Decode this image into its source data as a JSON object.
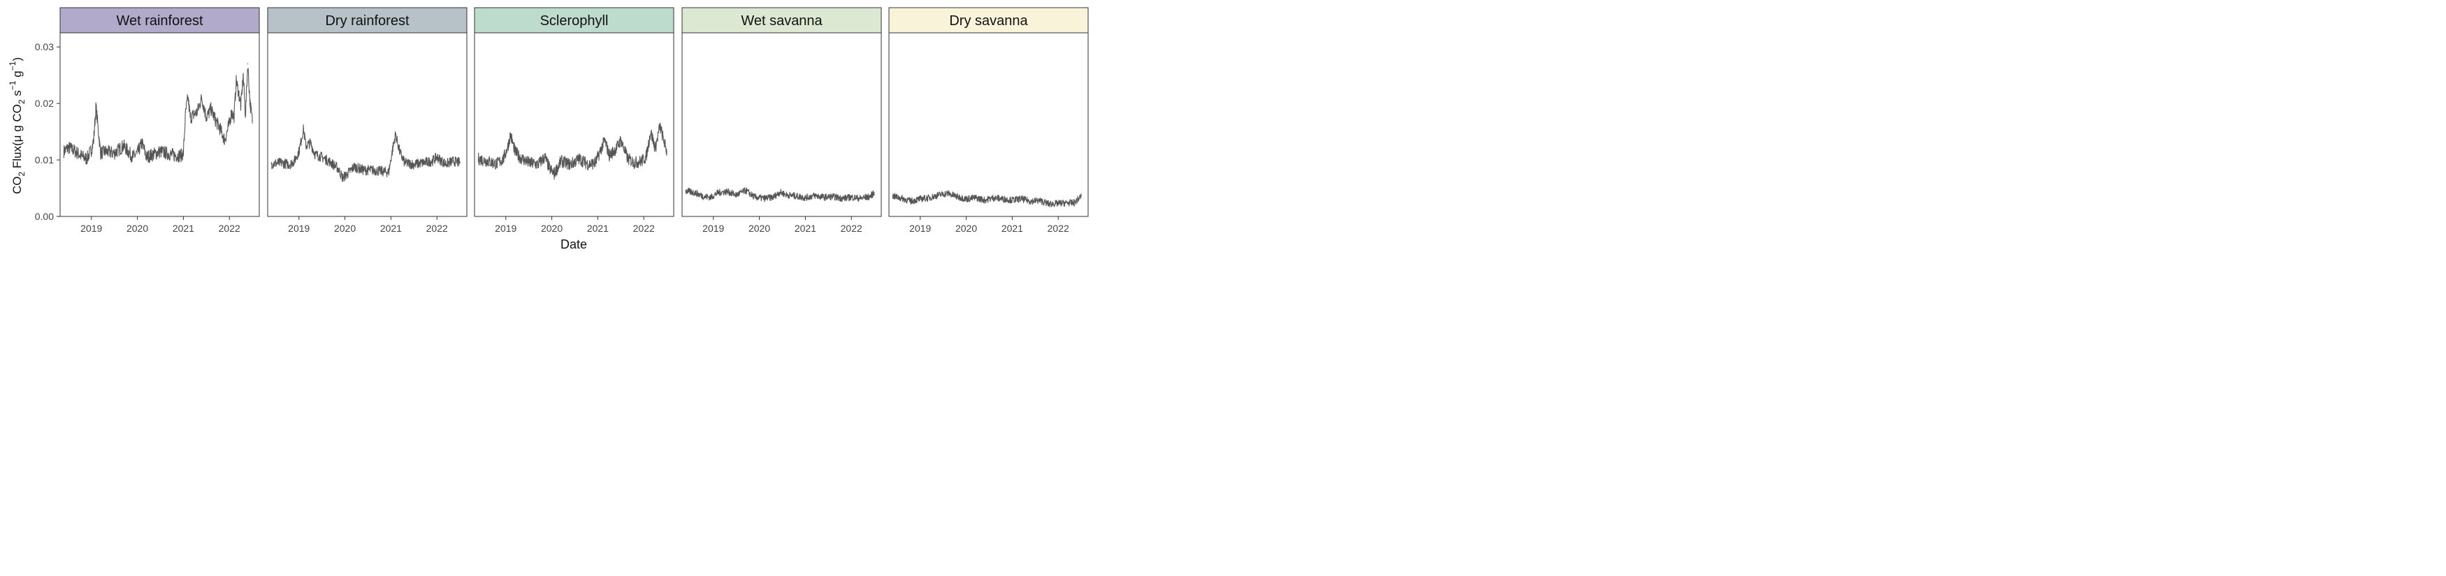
{
  "chart_data": {
    "type": "line",
    "layout": "facet-row",
    "y_label_parts": [
      "CO",
      "2",
      " Flux(",
      "μ",
      " g CO",
      "2",
      " s",
      "−1",
      " g",
      "−1",
      ")"
    ],
    "xlabel": "Date",
    "ylim": [
      0,
      0.0325
    ],
    "xlim": [
      2018.32,
      2022.65
    ],
    "y_ticks": [
      0.0,
      0.01,
      0.02,
      0.03
    ],
    "y_tick_labels": [
      "0.00",
      "0.01",
      "0.02",
      "0.03"
    ],
    "x_ticks": [
      2019,
      2020,
      2021,
      2022
    ],
    "x_tick_labels": [
      "2019",
      "2020",
      "2021",
      "2022"
    ],
    "grid": false,
    "line_color": "#3a3a3a",
    "panels": [
      {
        "title": "Wet rainforest",
        "strip_color": "#b1aacb",
        "noise": 0.0012,
        "x": [
          2018.4,
          2018.5,
          2018.6,
          2018.7,
          2018.8,
          2018.9,
          2019.0,
          2019.05,
          2019.1,
          2019.2,
          2019.3,
          2019.5,
          2019.7,
          2019.9,
          2020.0,
          2020.1,
          2020.2,
          2020.5,
          2020.8,
          2020.95,
          2021.0,
          2021.05,
          2021.1,
          2021.15,
          2021.3,
          2021.4,
          2021.5,
          2021.6,
          2021.7,
          2021.8,
          2021.9,
          2022.0,
          2022.05,
          2022.1,
          2022.15,
          2022.2,
          2022.25,
          2022.3,
          2022.35,
          2022.4,
          2022.45,
          2022.5
        ],
        "y": [
          0.0115,
          0.0122,
          0.0118,
          0.0112,
          0.0106,
          0.0102,
          0.0118,
          0.0135,
          0.0195,
          0.0112,
          0.0115,
          0.0112,
          0.0125,
          0.0105,
          0.0112,
          0.013,
          0.0105,
          0.0115,
          0.0108,
          0.0108,
          0.0112,
          0.0185,
          0.021,
          0.0175,
          0.0185,
          0.021,
          0.0175,
          0.019,
          0.017,
          0.0155,
          0.0135,
          0.0165,
          0.0185,
          0.0175,
          0.024,
          0.022,
          0.0195,
          0.025,
          0.018,
          0.027,
          0.02,
          0.017
        ]
      },
      {
        "title": "Dry rainforest",
        "strip_color": "#b6c2c7",
        "noise": 0.0009,
        "x": [
          2018.4,
          2018.6,
          2018.8,
          2018.9,
          2019.0,
          2019.1,
          2019.15,
          2019.25,
          2019.35,
          2019.5,
          2019.7,
          2019.85,
          2019.95,
          2020.05,
          2020.2,
          2020.4,
          2020.6,
          2020.8,
          2020.95,
          2021.05,
          2021.1,
          2021.2,
          2021.3,
          2021.5,
          2021.7,
          2021.9,
          2022.0,
          2022.1,
          2022.2,
          2022.35,
          2022.5
        ],
        "y": [
          0.0093,
          0.0095,
          0.0092,
          0.0098,
          0.0115,
          0.0155,
          0.0125,
          0.013,
          0.011,
          0.0105,
          0.0095,
          0.0085,
          0.0068,
          0.0075,
          0.0088,
          0.0082,
          0.0082,
          0.008,
          0.0078,
          0.0125,
          0.0145,
          0.0112,
          0.0095,
          0.0092,
          0.0095,
          0.0098,
          0.0105,
          0.0098,
          0.0093,
          0.0098,
          0.0095
        ]
      },
      {
        "title": "Sclerophyll",
        "strip_color": "#bddccd",
        "noise": 0.0011,
        "x": [
          2018.4,
          2018.6,
          2018.8,
          2018.95,
          2019.05,
          2019.1,
          2019.2,
          2019.3,
          2019.5,
          2019.7,
          2019.85,
          2019.95,
          2020.05,
          2020.2,
          2020.4,
          2020.6,
          2020.8,
          2020.95,
          2021.05,
          2021.15,
          2021.25,
          2021.4,
          2021.5,
          2021.65,
          2021.8,
          2021.95,
          2022.05,
          2022.15,
          2022.25,
          2022.35,
          2022.5
        ],
        "y": [
          0.0102,
          0.0098,
          0.0093,
          0.0102,
          0.0125,
          0.0145,
          0.0115,
          0.0105,
          0.0095,
          0.0092,
          0.0105,
          0.0085,
          0.0075,
          0.0098,
          0.0092,
          0.0102,
          0.0092,
          0.0095,
          0.0115,
          0.0135,
          0.0108,
          0.012,
          0.0135,
          0.0102,
          0.0095,
          0.0098,
          0.0105,
          0.015,
          0.012,
          0.016,
          0.0115
        ]
      },
      {
        "title": "Wet savanna",
        "strip_color": "#dde8d3",
        "noise": 0.0006,
        "x": [
          2018.4,
          2018.6,
          2018.8,
          2018.95,
          2019.1,
          2019.3,
          2019.5,
          2019.7,
          2019.9,
          2020.1,
          2020.3,
          2020.45,
          2020.6,
          2020.8,
          2021.0,
          2021.2,
          2021.4,
          2021.6,
          2021.8,
          2022.0,
          2022.2,
          2022.4,
          2022.5
        ],
        "y": [
          0.0045,
          0.0042,
          0.0035,
          0.0034,
          0.0042,
          0.0044,
          0.0038,
          0.0046,
          0.0034,
          0.0032,
          0.0034,
          0.0043,
          0.0038,
          0.0036,
          0.0033,
          0.0037,
          0.0034,
          0.0035,
          0.0032,
          0.0034,
          0.0032,
          0.0035,
          0.0042
        ]
      },
      {
        "title": "Dry savanna",
        "strip_color": "#f9f4d9",
        "noise": 0.0006,
        "x": [
          2018.4,
          2018.6,
          2018.8,
          2019.0,
          2019.2,
          2019.4,
          2019.6,
          2019.8,
          2020.0,
          2020.2,
          2020.4,
          2020.6,
          2020.8,
          2021.0,
          2021.2,
          2021.4,
          2021.6,
          2021.8,
          2022.0,
          2022.2,
          2022.35,
          2022.5
        ],
        "y": [
          0.0036,
          0.0032,
          0.0027,
          0.0031,
          0.0033,
          0.0038,
          0.0041,
          0.0035,
          0.0031,
          0.0033,
          0.0029,
          0.0033,
          0.0031,
          0.0029,
          0.0031,
          0.0027,
          0.0028,
          0.0022,
          0.0023,
          0.0024,
          0.0024,
          0.0036
        ]
      }
    ]
  }
}
